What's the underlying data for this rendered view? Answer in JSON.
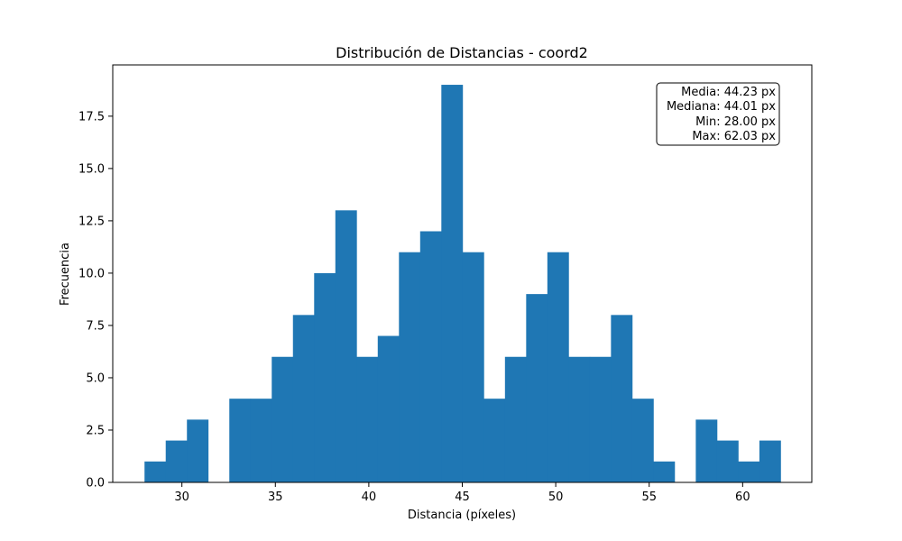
{
  "chart_data": {
    "type": "bar",
    "title": "Distribución de Distancias - coord2",
    "xlabel": "Distancia (píxeles)",
    "ylabel": "Frecuencia",
    "xlim": [
      26.3,
      63.7
    ],
    "ylim": [
      0,
      19.95
    ],
    "x_ticks": [
      30,
      35,
      40,
      45,
      50,
      55,
      60
    ],
    "x_tick_labels": [
      "30",
      "35",
      "40",
      "45",
      "50",
      "55",
      "60"
    ],
    "y_ticks": [
      0,
      2.5,
      5,
      7.5,
      10,
      12.5,
      15,
      17.5
    ],
    "y_tick_labels": [
      "0.0",
      "2.5",
      "5.0",
      "7.5",
      "10.0",
      "12.5",
      "15.0",
      "17.5"
    ],
    "bin_start": 28.0,
    "bin_end": 62.03,
    "values": [
      1,
      2,
      3,
      0,
      4,
      4,
      6,
      8,
      10,
      13,
      6,
      7,
      11,
      12,
      19,
      11,
      4,
      6,
      9,
      11,
      6,
      6,
      8,
      4,
      1,
      0,
      3,
      2,
      1,
      2
    ],
    "bar_color": "#1f77b4",
    "grid": false,
    "stats_box": {
      "placement": "top-right",
      "lines": [
        "Media: 44.23 px",
        "Mediana: 44.01 px",
        "Min: 28.00 px",
        "Max: 62.03 px"
      ]
    }
  }
}
